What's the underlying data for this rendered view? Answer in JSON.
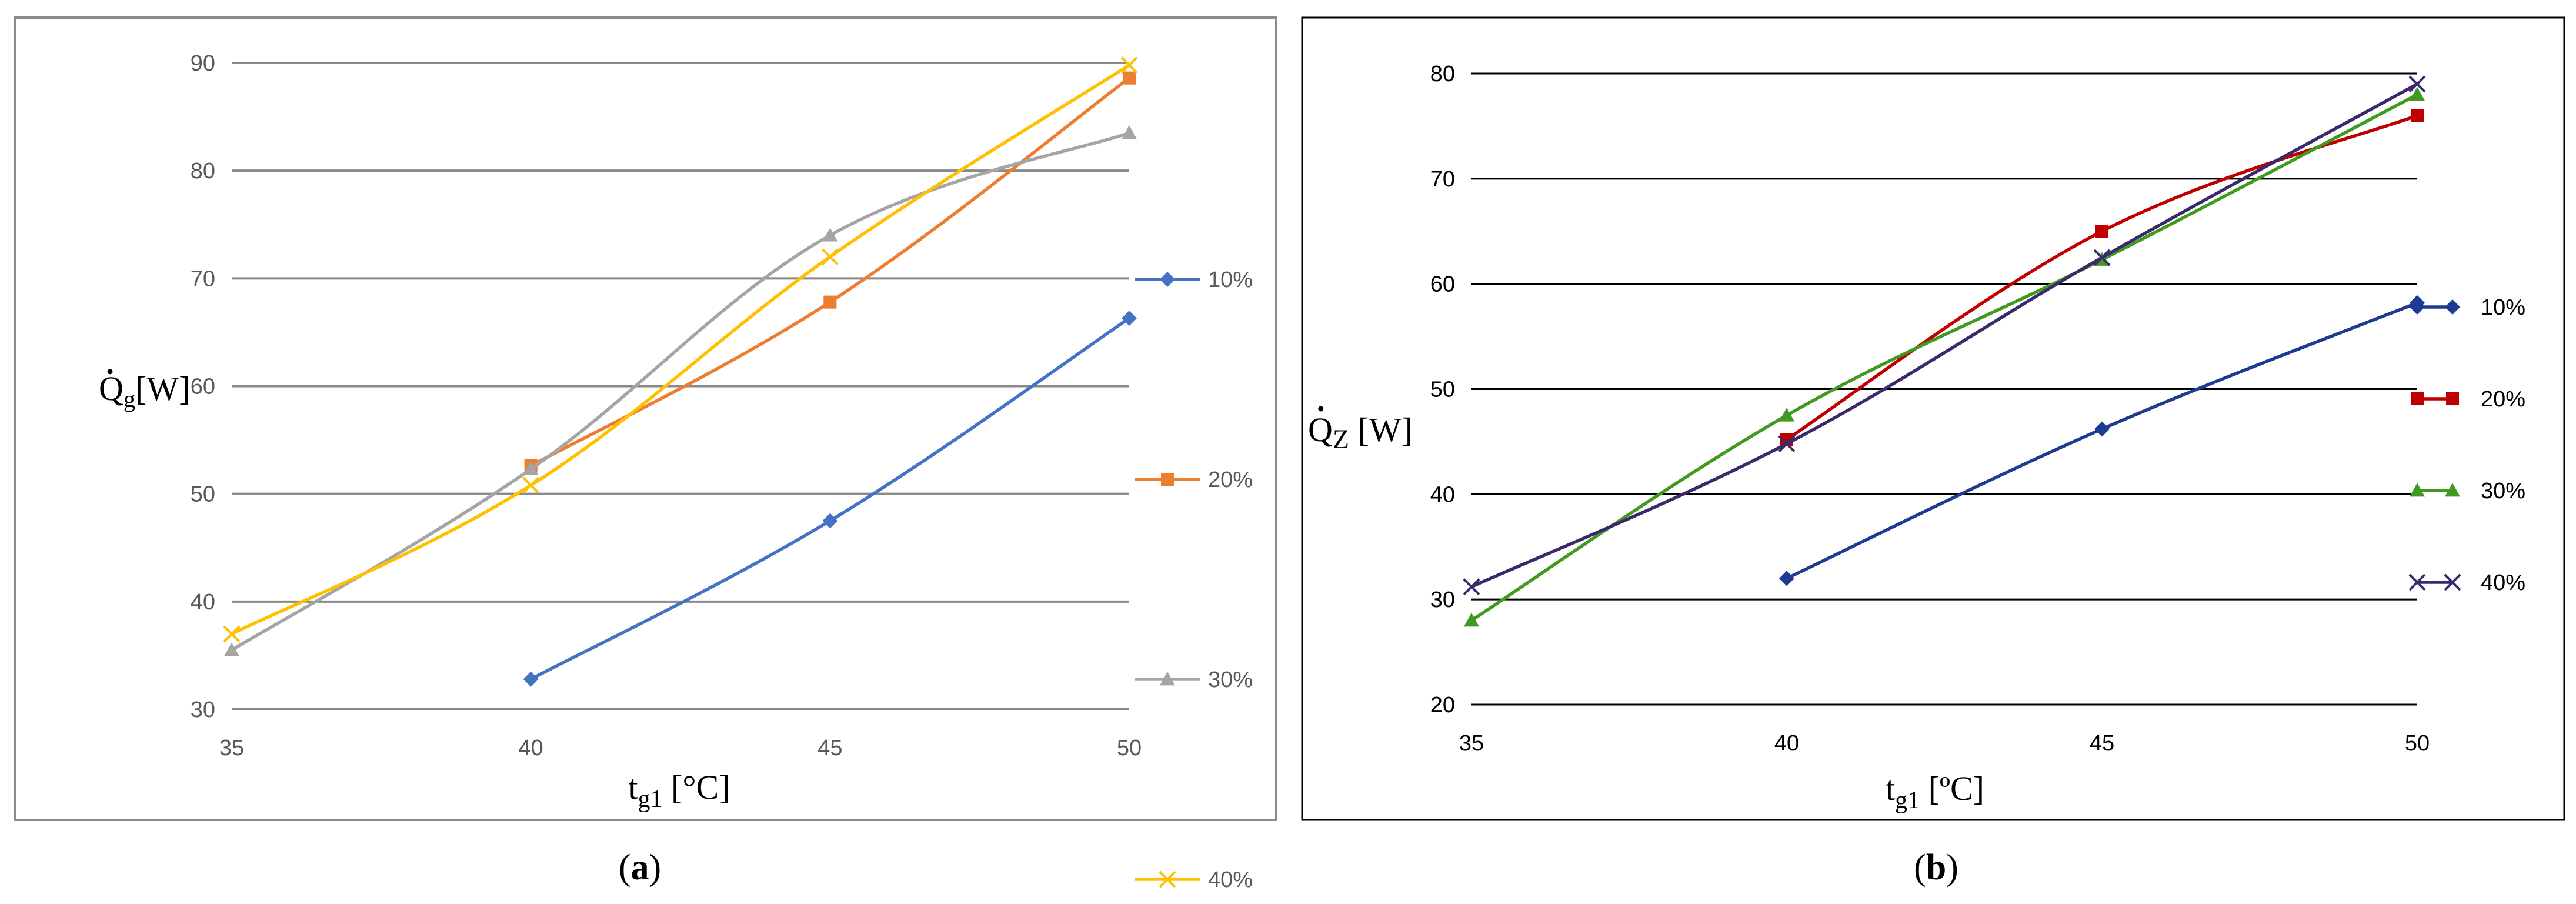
{
  "chart_data": [
    {
      "type": "line",
      "panel_label": "a",
      "xlabel": {
        "main": "t",
        "sub": "g1",
        "unit": " [°C]"
      },
      "ylabel": {
        "main": "Q",
        "sub": "g",
        "unit": "[W]"
      },
      "xlim": [
        35,
        50
      ],
      "ylim": [
        30,
        90
      ],
      "x_ticks": [
        35,
        40,
        45,
        50
      ],
      "y_ticks": [
        30,
        40,
        50,
        60,
        70,
        80,
        90
      ],
      "grid": "horizontal",
      "legend_position": "right",
      "series": [
        {
          "name": "10%",
          "color": "#4472C4",
          "marker": "diamond",
          "x": [
            40,
            45,
            50
          ],
          "y": [
            32.8,
            47.5,
            66.3
          ]
        },
        {
          "name": "20%",
          "color": "#ED7D31",
          "marker": "square",
          "x": [
            40,
            45,
            50
          ],
          "y": [
            52.6,
            67.8,
            88.6
          ]
        },
        {
          "name": "30%",
          "color": "#A5A5A5",
          "marker": "triangle",
          "x": [
            35,
            40,
            45,
            50
          ],
          "y": [
            35.5,
            52.3,
            74.0,
            83.5
          ]
        },
        {
          "name": "40%",
          "color": "#FFC000",
          "marker": "x",
          "x": [
            35,
            40,
            45,
            50
          ],
          "y": [
            37.0,
            50.8,
            72.0,
            89.8
          ]
        }
      ]
    },
    {
      "type": "line",
      "panel_label": "b",
      "xlabel": {
        "main": "t",
        "sub": "g1",
        "unit": " [ºC]"
      },
      "ylabel": {
        "main": "Q",
        "sub": "Z",
        "unit": " [W]"
      },
      "xlim": [
        35,
        50
      ],
      "ylim": [
        20,
        80
      ],
      "x_ticks": [
        35,
        40,
        45,
        50
      ],
      "y_ticks": [
        20,
        30,
        40,
        50,
        60,
        70,
        80
      ],
      "grid": "horizontal",
      "legend_position": "right",
      "series": [
        {
          "name": "10%",
          "color": "#1F3A93",
          "marker": "diamond",
          "x": [
            40,
            45,
            50
          ],
          "y": [
            32.0,
            46.2,
            58.2
          ]
        },
        {
          "name": "20%",
          "color": "#C00000",
          "marker": "square",
          "x": [
            40,
            45,
            50
          ],
          "y": [
            45.2,
            65.0,
            76.0
          ]
        },
        {
          "name": "30%",
          "color": "#3F9A1F",
          "marker": "triangle",
          "x": [
            35,
            40,
            45,
            50
          ],
          "y": [
            28.0,
            47.5,
            62.3,
            78.0
          ]
        },
        {
          "name": "40%",
          "color": "#3B2A6B",
          "marker": "x",
          "x": [
            35,
            40,
            45,
            50
          ],
          "y": [
            31.2,
            44.8,
            62.5,
            79.0
          ]
        }
      ]
    }
  ]
}
